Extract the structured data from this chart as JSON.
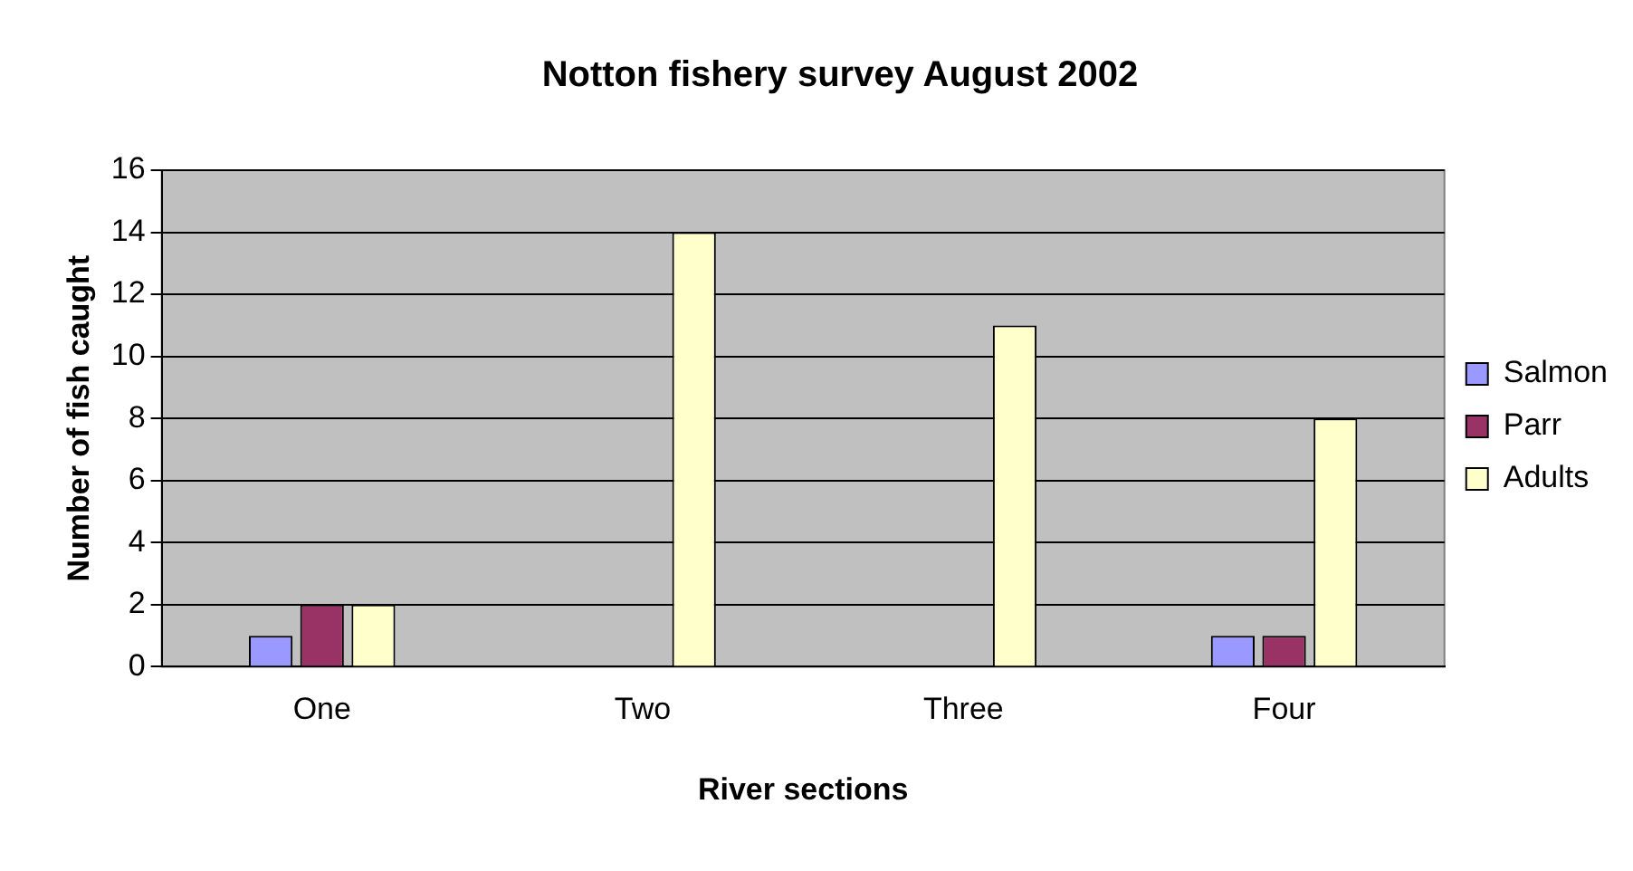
{
  "chart_data": {
    "type": "bar",
    "title": "Notton fishery survey August 2002",
    "xlabel": "River sections",
    "ylabel": "Number of fish caught",
    "categories": [
      "One",
      "Two",
      "Three",
      "Four"
    ],
    "series": [
      {
        "name": "Salmon",
        "color": "#9999ff",
        "values": [
          1,
          0,
          0,
          1
        ]
      },
      {
        "name": "Parr",
        "color": "#993366",
        "values": [
          2,
          0,
          0,
          1
        ]
      },
      {
        "name": "Adults",
        "color": "#ffffcc",
        "values": [
          2,
          14,
          11,
          8
        ]
      }
    ],
    "ylim": [
      0,
      16
    ],
    "yticks": [
      0,
      2,
      4,
      6,
      8,
      10,
      12,
      14,
      16
    ],
    "grid": "y",
    "legend": "right"
  }
}
